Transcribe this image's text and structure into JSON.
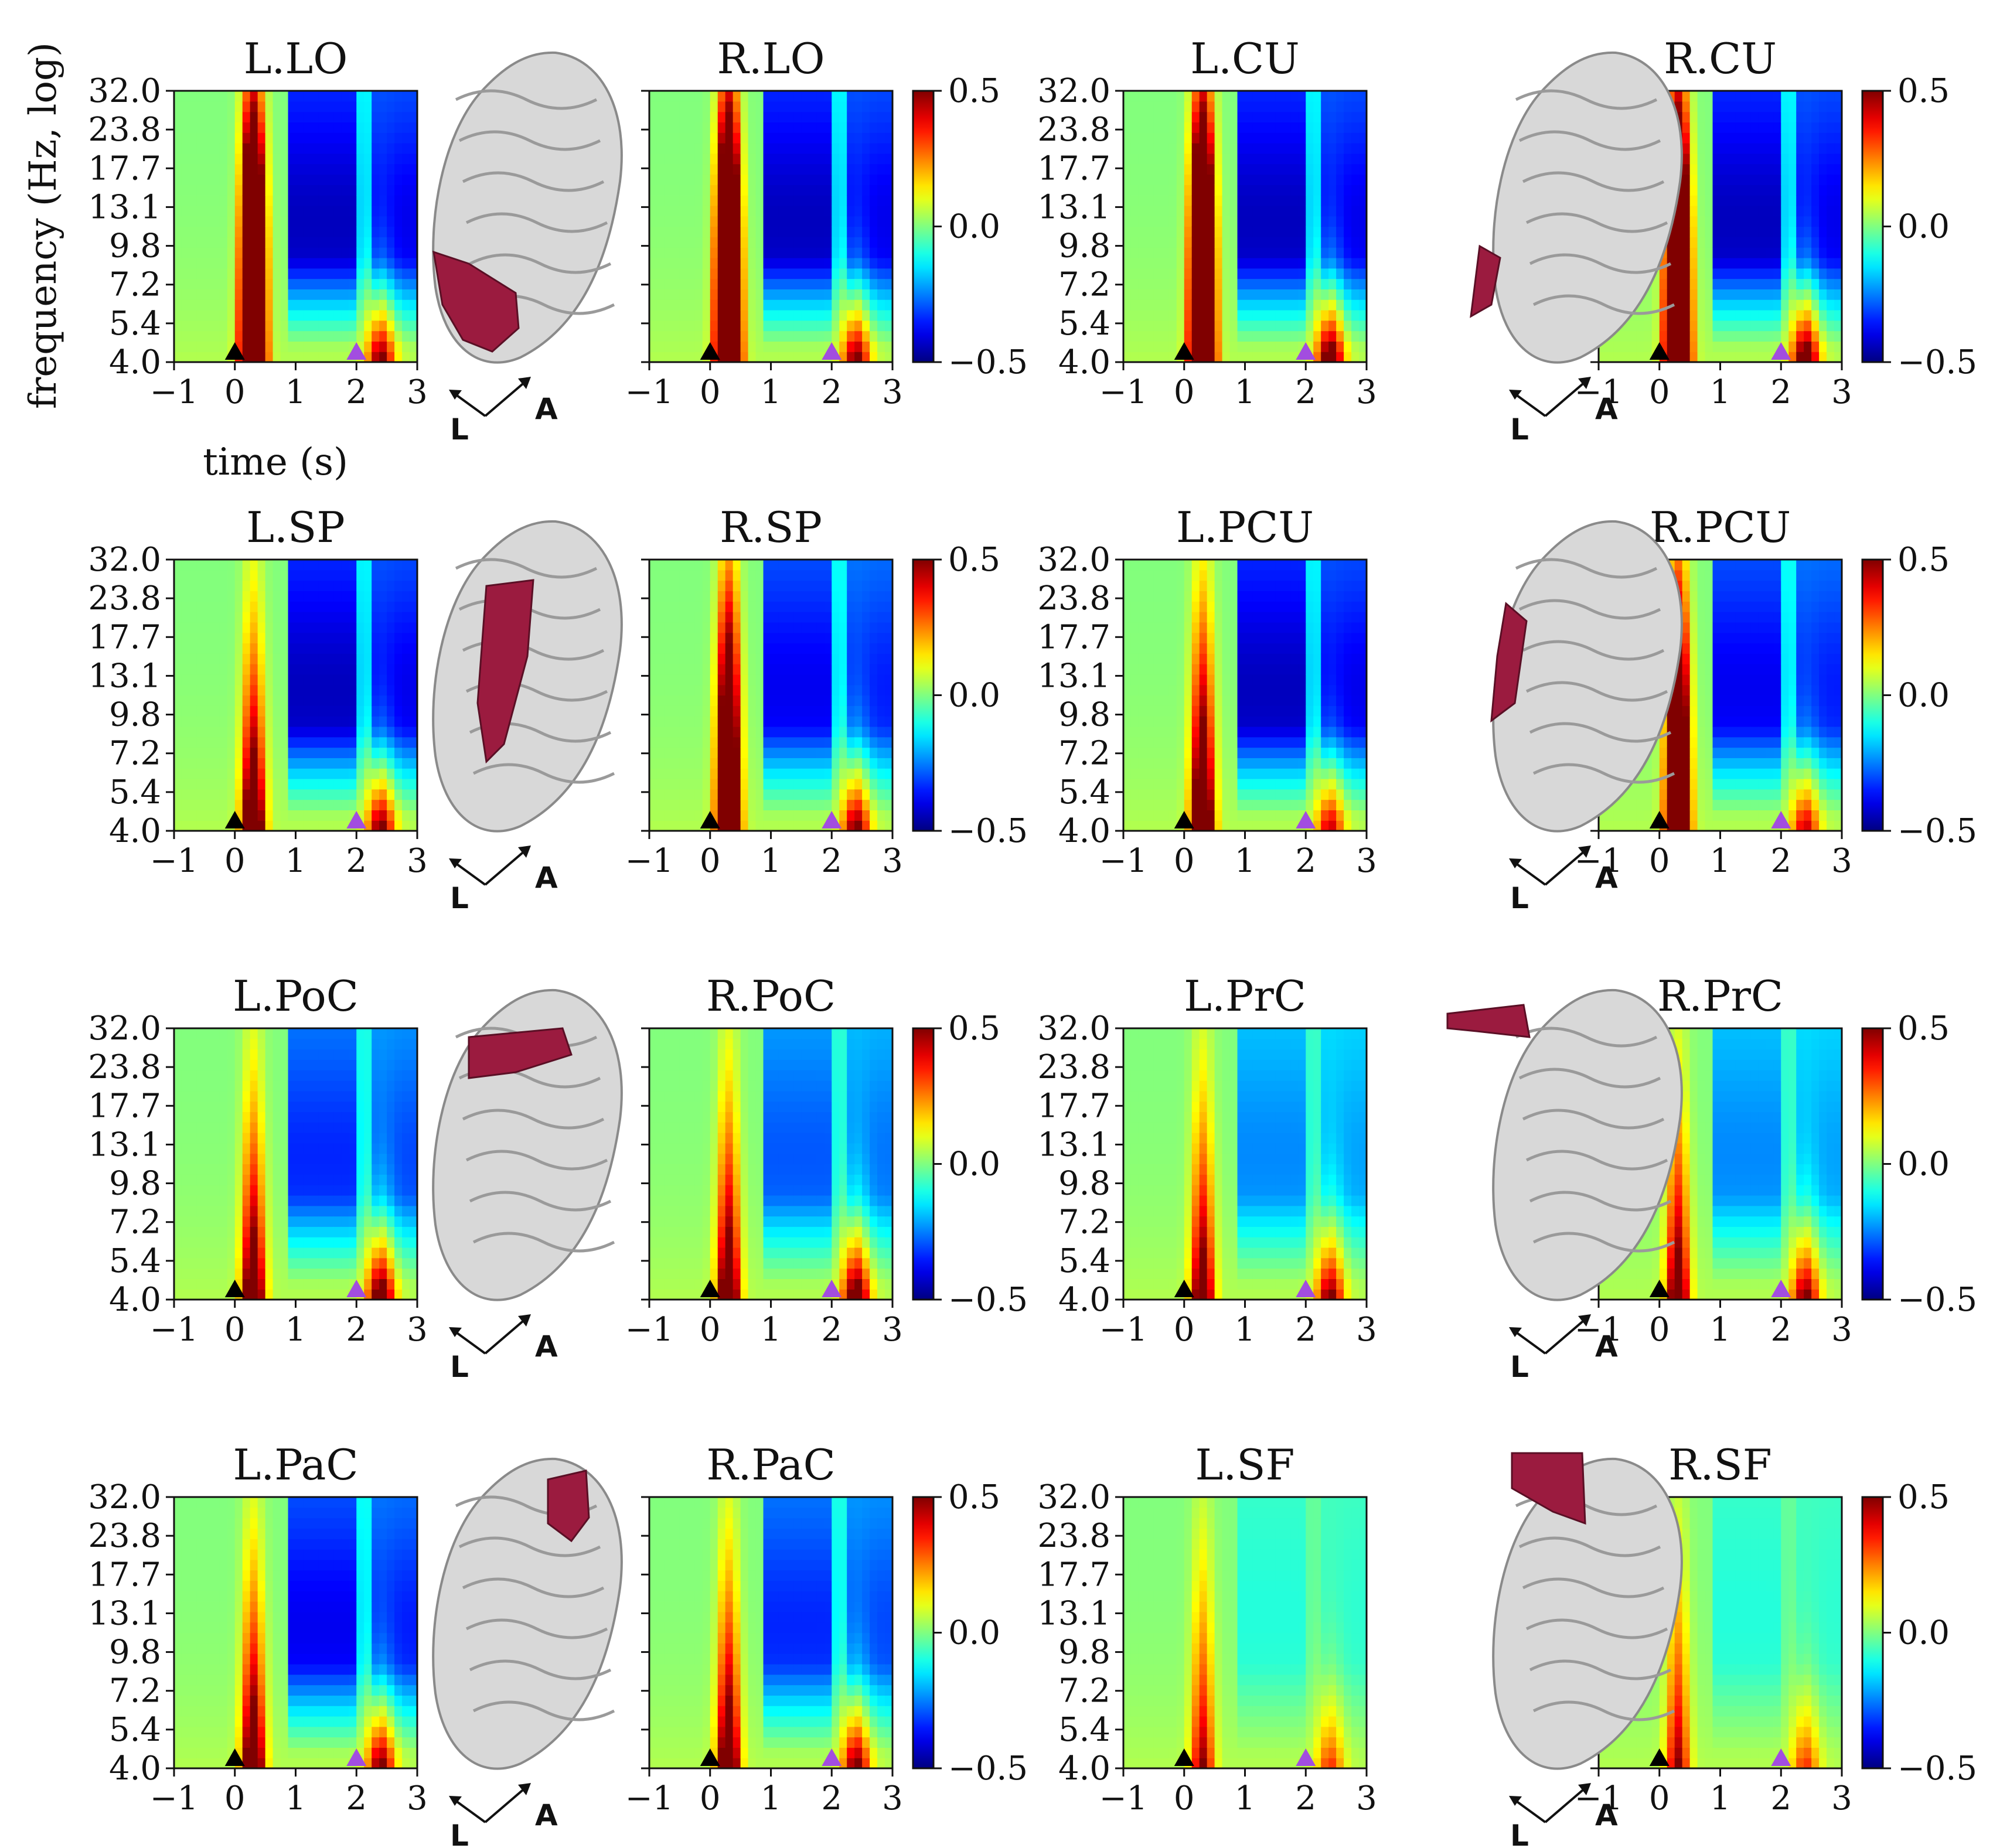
{
  "figure": {
    "ylabel": "frequency (Hz, log)",
    "xlabel": "time (s)",
    "x_ticks": [
      "−1",
      "0",
      "1",
      "2",
      "3"
    ],
    "y_ticks": [
      "32.0",
      "23.8",
      "17.7",
      "13.1",
      "9.8",
      "7.2",
      "5.4",
      "4.0"
    ],
    "colorbar_ticks": [
      "0.5",
      "0.0",
      "−0.5"
    ],
    "brain_labels": {
      "left": "L",
      "anterior": "A"
    },
    "colors": {
      "region_highlight": "#9b1b3f",
      "marker_event_1": "#000000",
      "marker_event_2": "#a24de0",
      "cortex": "#d8d8d8"
    }
  },
  "chart_data": {
    "type": "heatmap",
    "x_range": [
      -1,
      3
    ],
    "y_range_hz": [
      4.0,
      32.0
    ],
    "y_scale": "log",
    "color_range": [
      -0.5,
      0.5
    ],
    "colormap": "jet",
    "event_markers_s": [
      0,
      2
    ],
    "panels": [
      {
        "title": "L.LO",
        "onset": 1.0,
        "onset_top": 1.0,
        "alpha": -0.45,
        "second": 0.5
      },
      {
        "title": "R.LO",
        "onset": 1.0,
        "onset_top": 1.0,
        "alpha": -0.45,
        "second": 0.5
      },
      {
        "title": "L.CU",
        "onset": 1.0,
        "onset_top": 1.0,
        "alpha": -0.45,
        "second": 0.6
      },
      {
        "title": "R.CU",
        "onset": 1.0,
        "onset_top": 1.0,
        "alpha": -0.45,
        "second": 0.6
      },
      {
        "title": "L.SP",
        "onset": 0.8,
        "onset_top": 0.1,
        "alpha": -0.45,
        "second": 0.5
      },
      {
        "title": "R.SP",
        "onset": 0.8,
        "onset_top": 0.5,
        "alpha": -0.4,
        "second": 0.5
      },
      {
        "title": "L.PCU",
        "onset": 0.8,
        "onset_top": 0.2,
        "alpha": -0.45,
        "second": 0.4
      },
      {
        "title": "R.PCU",
        "onset": 0.8,
        "onset_top": 0.6,
        "alpha": -0.4,
        "second": 0.4
      },
      {
        "title": "L.PoC",
        "onset": 0.7,
        "onset_top": 0.1,
        "alpha": -0.35,
        "second": 0.6
      },
      {
        "title": "R.PoC",
        "onset": 0.7,
        "onset_top": 0.1,
        "alpha": -0.3,
        "second": 0.6
      },
      {
        "title": "L.PrC",
        "onset": 0.6,
        "onset_top": 0.1,
        "alpha": -0.25,
        "second": 0.5
      },
      {
        "title": "R.PrC",
        "onset": 0.6,
        "onset_top": 0.1,
        "alpha": -0.25,
        "second": 0.5
      },
      {
        "title": "L.PaC",
        "onset": 0.7,
        "onset_top": 0.1,
        "alpha": -0.4,
        "second": 0.5
      },
      {
        "title": "R.PaC",
        "onset": 0.7,
        "onset_top": 0.1,
        "alpha": -0.35,
        "second": 0.5
      },
      {
        "title": "L.SF",
        "onset": 0.4,
        "onset_top": 0.1,
        "alpha": -0.1,
        "second": 0.3
      },
      {
        "title": "R.SF",
        "onset": 0.4,
        "onset_top": 0.1,
        "alpha": -0.1,
        "second": 0.3
      }
    ]
  }
}
